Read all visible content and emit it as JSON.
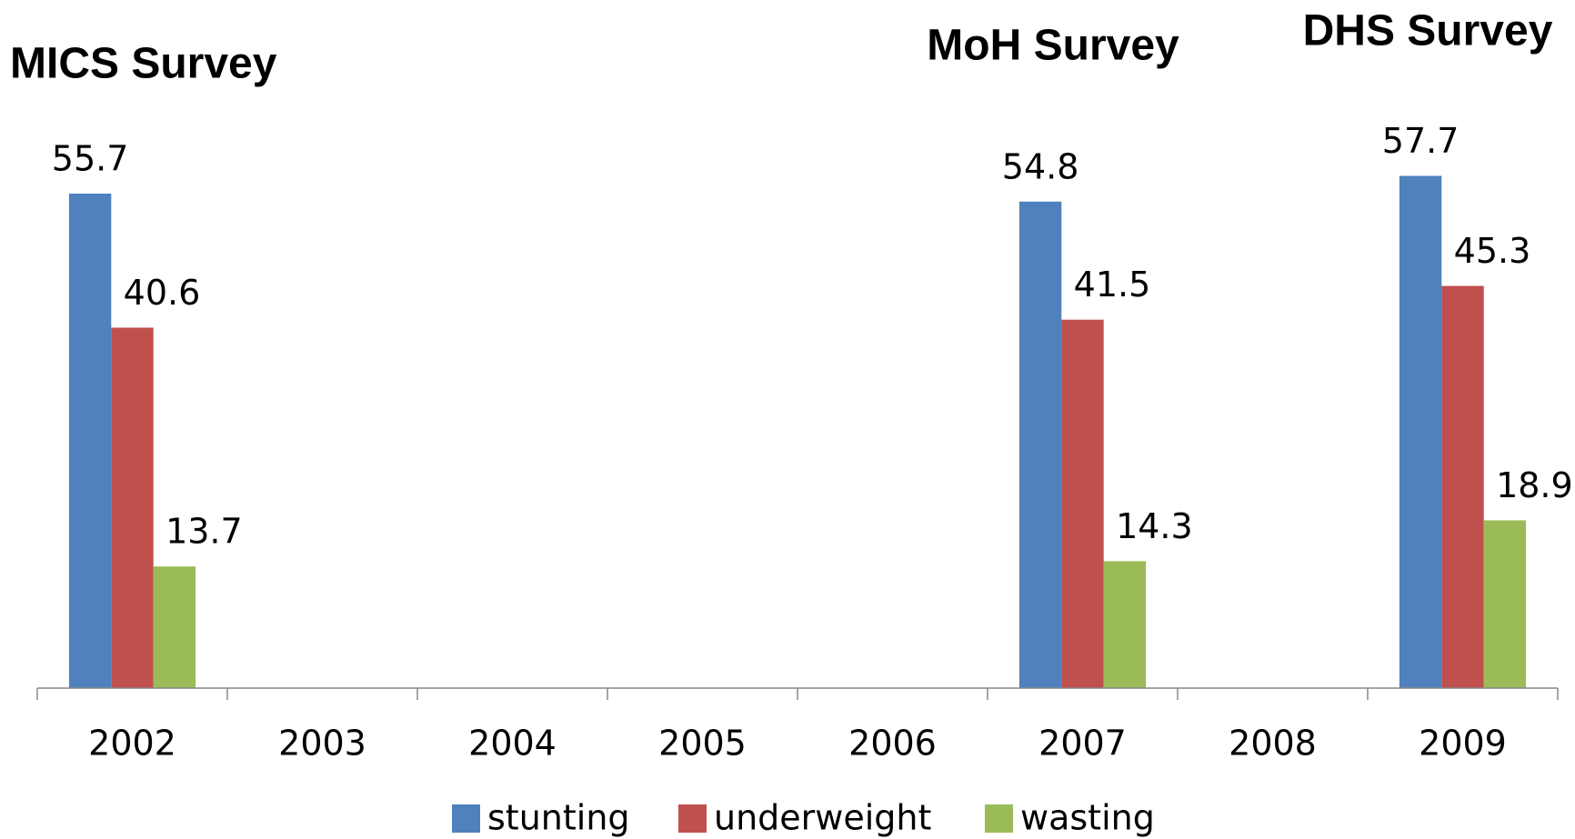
{
  "chart_data": {
    "type": "bar",
    "annotations": [
      "MICS Survey",
      "MoH Survey",
      "DHS Survey"
    ],
    "categories": [
      "2002",
      "2003",
      "2004",
      "2005",
      "2006",
      "2007",
      "2008",
      "2009"
    ],
    "series": [
      {
        "name": "stunting",
        "color": "#4f81bd",
        "values": [
          55.7,
          null,
          null,
          null,
          null,
          54.8,
          null,
          57.7
        ]
      },
      {
        "name": "underweight",
        "color": "#c0504d",
        "values": [
          40.6,
          null,
          null,
          null,
          null,
          41.5,
          null,
          45.3
        ]
      },
      {
        "name": "wasting",
        "color": "#9bbb59",
        "values": [
          13.7,
          null,
          null,
          null,
          null,
          14.3,
          null,
          18.9
        ]
      }
    ],
    "ylim": [
      0,
      60
    ]
  }
}
